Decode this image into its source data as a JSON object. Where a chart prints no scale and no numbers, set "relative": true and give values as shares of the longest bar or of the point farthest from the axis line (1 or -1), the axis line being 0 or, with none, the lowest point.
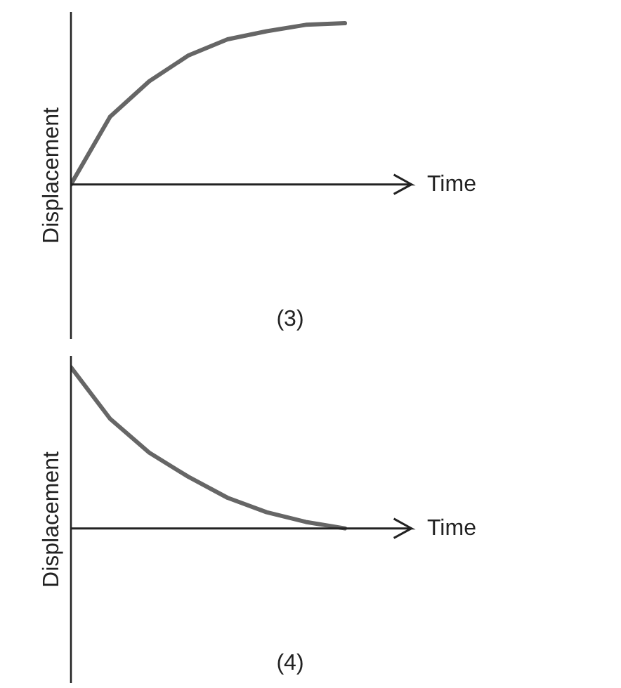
{
  "chart_data": [
    {
      "type": "line",
      "xlabel": "Time",
      "ylabel": "Displacement",
      "relative": true,
      "categories": [
        null,
        null,
        null,
        null,
        null,
        null,
        null,
        null
      ],
      "series": [
        {
          "color": "#666666",
          "values": [
            0,
            0.42,
            0.64,
            0.8,
            0.9,
            0.95,
            0.99,
            1
          ]
        }
      ],
      "annotations": [
        "(3)"
      ],
      "grid": false
    },
    {
      "type": "line",
      "xlabel": "Time",
      "ylabel": "Displacement",
      "relative": true,
      "categories": [
        null,
        null,
        null,
        null,
        null,
        null,
        null,
        null
      ],
      "series": [
        {
          "color": "#666666",
          "values": [
            1,
            0.68,
            0.47,
            0.32,
            0.19,
            0.1,
            0.04,
            0
          ]
        }
      ],
      "annotations": [
        "(4)"
      ],
      "grid": false
    }
  ]
}
